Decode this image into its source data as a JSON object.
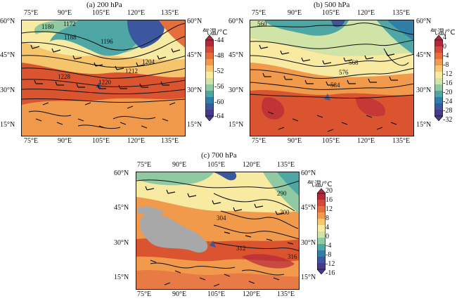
{
  "panels": [
    {
      "id": "a",
      "title": "(a) 200 hPa",
      "lon_ticks": [
        "75°E",
        "90°E",
        "105°E",
        "120°E",
        "135°E"
      ],
      "lat_ticks_left": [
        "60°N",
        "45°N",
        "30°N",
        "15°N"
      ],
      "lat_ticks_right": [
        "60°N",
        "45°N",
        "30°N",
        "15°N"
      ],
      "contour_labels": [
        "1172",
        "1180",
        "1188",
        "1196",
        "1204",
        "1212",
        "1220",
        "1228"
      ],
      "colorbar": {
        "title": "气温/°C",
        "labels": [
          "-44",
          "-48",
          "-52",
          "-56",
          "-60",
          "-64"
        ],
        "colors": [
          "#b5273b",
          "#d6493a",
          "#e66e3a",
          "#f19a4b",
          "#f7c870",
          "#f8eaa0",
          "#cfe4a6",
          "#8fcaa2",
          "#4ea7a4",
          "#2f7fa8",
          "#3b57a0",
          "#4a3a8c"
        ]
      }
    },
    {
      "id": "b",
      "title": "(b) 500 hPa",
      "lon_ticks": [
        "75°E",
        "90°E",
        "105°E",
        "120°E",
        "135°E"
      ],
      "lat_ticks_left": [
        "60°N",
        "45°N",
        "30°N",
        "15°N"
      ],
      "lat_ticks_right": [
        "60°N",
        "45°N",
        "30°N",
        "15°N"
      ],
      "contour_labels": [
        "560",
        "568",
        "576",
        "584"
      ],
      "colorbar": {
        "title": "气温/°C",
        "labels": [
          "4",
          "0",
          "-4",
          "-8",
          "-12",
          "-16",
          "-20",
          "-24",
          "-28",
          "-32"
        ],
        "colors": [
          "#b5273b",
          "#d6493a",
          "#e66e3a",
          "#f19a4b",
          "#f7c870",
          "#f8eaa0",
          "#cfe4a6",
          "#8fcaa2",
          "#4ea7a4",
          "#2f7fa8",
          "#3b57a0",
          "#4a3a8c"
        ]
      }
    },
    {
      "id": "c",
      "title": "(c) 700 hPa",
      "lon_ticks": [
        "75°E",
        "90°E",
        "105°E",
        "120°E",
        "135°E"
      ],
      "lat_ticks_left": [
        "60°N",
        "45°N",
        "30°N",
        "15°N"
      ],
      "lat_ticks_right": [
        "60°N",
        "45°N",
        "30°N",
        "15°N"
      ],
      "contour_labels": [
        "290",
        "300",
        "304",
        "312",
        "316"
      ],
      "colorbar": {
        "title": "气温/°C",
        "labels": [
          "20",
          "16",
          "12",
          "8",
          "4",
          "0",
          "-4",
          "-8",
          "-12",
          "-16"
        ],
        "colors": [
          "#b5273b",
          "#d6493a",
          "#e66e3a",
          "#f19a4b",
          "#f7c870",
          "#f8eaa0",
          "#cfe4a6",
          "#8fcaa2",
          "#4ea7a4",
          "#2f7fa8",
          "#3b57a0",
          "#4a3a8c"
        ]
      }
    }
  ]
}
